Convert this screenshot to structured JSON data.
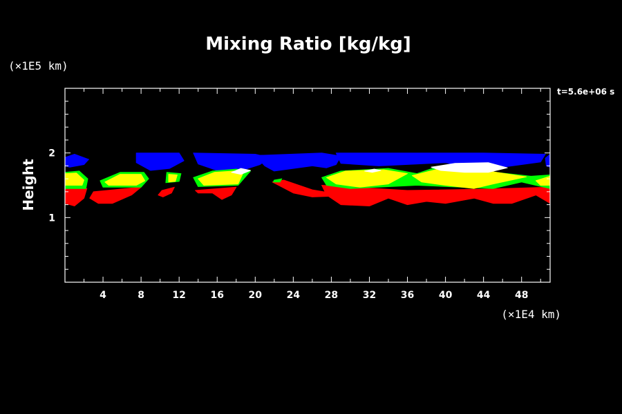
{
  "chart_data": {
    "type": "heatmap",
    "title": "Mixing Ratio [kg/kg]",
    "ylabel": "Height",
    "xlabel": "",
    "x_unit": "(×1E4 km)",
    "y_unit": "(×1E5 km)",
    "time_label": "t=5.6e+06 s",
    "xlim": [
      0,
      51
    ],
    "ylim": [
      0,
      3
    ],
    "x_ticks": [
      4,
      8,
      12,
      16,
      20,
      24,
      28,
      32,
      36,
      40,
      44,
      48
    ],
    "y_ticks": [
      1,
      2
    ],
    "levels": [
      {
        "color": "#0000ff",
        "regions": [
          [
            [
              0,
              1.93
            ],
            [
              1,
              1.98
            ],
            [
              2.5,
              1.9
            ],
            [
              2,
              1.82
            ],
            [
              0.5,
              1.78
            ],
            [
              0,
              1.8
            ]
          ],
          [
            [
              7.5,
              2.0
            ],
            [
              12,
              2.0
            ],
            [
              12.5,
              1.88
            ],
            [
              11,
              1.76
            ],
            [
              9,
              1.73
            ],
            [
              7.5,
              1.85
            ]
          ],
          [
            [
              13.5,
              2.0
            ],
            [
              20,
              1.98
            ],
            [
              21.5,
              1.93
            ],
            [
              20.5,
              1.82
            ],
            [
              19,
              1.75
            ],
            [
              16,
              1.73
            ],
            [
              14,
              1.83
            ]
          ],
          [
            [
              20,
              1.96
            ],
            [
              27,
              2.0
            ],
            [
              29,
              1.95
            ],
            [
              28.5,
              1.82
            ],
            [
              27.5,
              1.77
            ],
            [
              26,
              1.8
            ],
            [
              24,
              1.76
            ],
            [
              22,
              1.72
            ],
            [
              21,
              1.8
            ]
          ],
          [
            [
              28.5,
              2.0
            ],
            [
              44,
              2.0
            ],
            [
              50.5,
              1.98
            ],
            [
              50,
              1.86
            ],
            [
              47,
              1.8
            ],
            [
              44,
              1.74
            ],
            [
              40,
              1.85
            ],
            [
              33,
              1.8
            ],
            [
              29,
              1.84
            ]
          ],
          [
            [
              50.5,
              1.92
            ],
            [
              51,
              1.98
            ],
            [
              51,
              1.78
            ],
            [
              50.6,
              1.8
            ]
          ]
        ]
      },
      {
        "color": "#ff0000",
        "regions": [
          [
            [
              0,
              1.45
            ],
            [
              2.3,
              1.45
            ],
            [
              2,
              1.3
            ],
            [
              1,
              1.18
            ],
            [
              0,
              1.22
            ]
          ],
          [
            [
              3,
              1.4
            ],
            [
              8,
              1.47
            ],
            [
              7,
              1.35
            ],
            [
              5,
              1.22
            ],
            [
              3.5,
              1.22
            ],
            [
              2.6,
              1.3
            ]
          ],
          [
            [
              10.2,
              1.42
            ],
            [
              11.5,
              1.47
            ],
            [
              11.2,
              1.38
            ],
            [
              10.3,
              1.32
            ],
            [
              9.8,
              1.35
            ]
          ],
          [
            [
              13.7,
              1.42
            ],
            [
              18,
              1.47
            ],
            [
              17.5,
              1.35
            ],
            [
              16.5,
              1.28
            ],
            [
              15.5,
              1.38
            ],
            [
              14,
              1.38
            ]
          ],
          [
            [
              21.8,
              1.55
            ],
            [
              23,
              1.58
            ],
            [
              26,
              1.43
            ],
            [
              28,
              1.38
            ],
            [
              28,
              1.33
            ],
            [
              26,
              1.32
            ],
            [
              24,
              1.38
            ]
          ],
          [
            [
              27,
              1.5
            ],
            [
              36,
              1.42
            ],
            [
              44,
              1.44
            ],
            [
              51,
              1.47
            ],
            [
              51,
              1.22
            ],
            [
              49.5,
              1.35
            ],
            [
              47,
              1.22
            ],
            [
              45,
              1.22
            ],
            [
              43,
              1.3
            ],
            [
              40,
              1.22
            ],
            [
              38,
              1.25
            ],
            [
              36,
              1.2
            ],
            [
              34,
              1.3
            ],
            [
              32,
              1.18
            ],
            [
              29,
              1.2
            ],
            [
              27.5,
              1.35
            ]
          ]
        ]
      },
      {
        "color": "#00ff00",
        "regions": [
          [
            [
              0,
              1.7
            ],
            [
              1.5,
              1.72
            ],
            [
              2.4,
              1.6
            ],
            [
              2.2,
              1.45
            ],
            [
              0,
              1.45
            ]
          ],
          [
            [
              3.7,
              1.57
            ],
            [
              5.8,
              1.7
            ],
            [
              8.3,
              1.7
            ],
            [
              8.8,
              1.6
            ],
            [
              8,
              1.47
            ],
            [
              4,
              1.47
            ]
          ],
          [
            [
              10.7,
              1.7
            ],
            [
              12.2,
              1.68
            ],
            [
              12,
              1.56
            ],
            [
              10.6,
              1.54
            ]
          ],
          [
            [
              13.5,
              1.62
            ],
            [
              15.5,
              1.72
            ],
            [
              18,
              1.75
            ],
            [
              19.5,
              1.72
            ],
            [
              18.2,
              1.5
            ],
            [
              14,
              1.48
            ]
          ],
          [
            [
              22,
              1.58
            ],
            [
              22.8,
              1.6
            ],
            [
              22.6,
              1.55
            ],
            [
              21.9,
              1.55
            ]
          ],
          [
            [
              27,
              1.62
            ],
            [
              29,
              1.72
            ],
            [
              34,
              1.76
            ],
            [
              37,
              1.68
            ],
            [
              39,
              1.78
            ],
            [
              44,
              1.72
            ],
            [
              49,
              1.64
            ],
            [
              51,
              1.66
            ],
            [
              51,
              1.45
            ],
            [
              48,
              1.55
            ],
            [
              45,
              1.45
            ],
            [
              37,
              1.5
            ],
            [
              30,
              1.45
            ],
            [
              27.5,
              1.5
            ]
          ]
        ]
      },
      {
        "color": "#ffff00",
        "regions": [
          [
            [
              0,
              1.68
            ],
            [
              1.2,
              1.69
            ],
            [
              2,
              1.58
            ],
            [
              1.8,
              1.5
            ],
            [
              0,
              1.5
            ]
          ],
          [
            [
              4.2,
              1.55
            ],
            [
              5.8,
              1.67
            ],
            [
              8,
              1.67
            ],
            [
              8.4,
              1.57
            ],
            [
              7.5,
              1.5
            ],
            [
              4.6,
              1.5
            ]
          ],
          [
            [
              10.9,
              1.67
            ],
            [
              11.8,
              1.66
            ],
            [
              11.6,
              1.56
            ],
            [
              10.9,
              1.55
            ]
          ],
          [
            [
              14,
              1.6
            ],
            [
              15.7,
              1.7
            ],
            [
              17.8,
              1.72
            ],
            [
              18.7,
              1.68
            ],
            [
              18.2,
              1.52
            ],
            [
              14.6,
              1.5
            ]
          ],
          [
            [
              27.5,
              1.62
            ],
            [
              29.5,
              1.72
            ],
            [
              33.5,
              1.74
            ],
            [
              36,
              1.68
            ],
            [
              34,
              1.52
            ],
            [
              31,
              1.47
            ],
            [
              28.5,
              1.52
            ]
          ],
          [
            [
              36.5,
              1.65
            ],
            [
              40,
              1.78
            ],
            [
              44.5,
              1.72
            ],
            [
              48.5,
              1.63
            ],
            [
              45,
              1.52
            ],
            [
              43,
              1.45
            ],
            [
              40,
              1.5
            ],
            [
              37.5,
              1.55
            ]
          ],
          [
            [
              49.5,
              1.57
            ],
            [
              51,
              1.64
            ],
            [
              51,
              1.5
            ],
            [
              50,
              1.5
            ]
          ]
        ]
      },
      {
        "color": "#ffffff",
        "regions": [
          [
            [
              17.5,
              1.7
            ],
            [
              18.5,
              1.76
            ],
            [
              19.5,
              1.73
            ],
            [
              18.5,
              1.67
            ]
          ],
          [
            [
              31.5,
              1.72
            ],
            [
              32.5,
              1.75
            ],
            [
              33.2,
              1.73
            ],
            [
              32.3,
              1.7
            ]
          ],
          [
            [
              38.5,
              1.78
            ],
            [
              41,
              1.84
            ],
            [
              44.5,
              1.85
            ],
            [
              46.5,
              1.77
            ],
            [
              44.5,
              1.7
            ],
            [
              42,
              1.7
            ],
            [
              39.5,
              1.73
            ]
          ]
        ]
      }
    ]
  }
}
